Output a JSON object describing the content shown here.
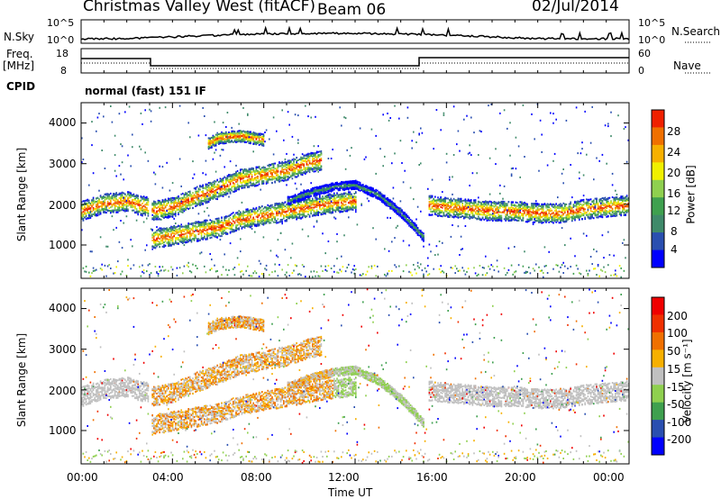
{
  "header": {
    "station": "Christmas Valley West (fitACF)",
    "beam": "Beam 06",
    "date": "02/Jul/2014"
  },
  "noise_panel": {
    "left_label": "N.Sky",
    "right_label": "N.Search",
    "left_ticks": [
      "10^5",
      "10^0"
    ],
    "right_ticks": [
      "10^5",
      "10^0"
    ]
  },
  "freq_panel": {
    "left_label_1": "Freq.",
    "left_label_2": "[MHz]",
    "right_label": "Nave",
    "left_ticks": [
      "18",
      "8"
    ],
    "right_ticks": [
      "60",
      "0"
    ]
  },
  "cpid": {
    "label": "CPID",
    "value": "normal (fast) 151 IF"
  },
  "colors": {
    "power_scale": [
      "#0000ff",
      "#2a4fb0",
      "#3f8a6a",
      "#3fa04f",
      "#8fd04f",
      "#f0f000",
      "#f7b000",
      "#f07000",
      "#f02000"
    ],
    "velocity_scale": [
      "#0000ff",
      "#2a4fb0",
      "#3fa04f",
      "#8fd04f",
      "#c0c0c0",
      "#f7b000",
      "#f07000",
      "#f03000",
      "#f00000"
    ]
  },
  "chart_data": [
    {
      "type": "heatmap",
      "panel": "power",
      "ylabel": "Slant Range [km]",
      "yticks": [
        "4000",
        "3000",
        "2000",
        "1000"
      ],
      "ylim": [
        180,
        4500
      ],
      "colorbar_label": "Power [dB]",
      "colorbar_ticks": [
        "28",
        "24",
        "20",
        "16",
        "12",
        "8",
        "4"
      ],
      "xlim_hours": [
        0,
        24
      ],
      "bands": [
        {
          "name": "main_echo_early",
          "x": [
            0,
            0.5,
            1,
            1.5,
            2,
            2.5,
            2.95
          ],
          "y": [
            1850,
            1950,
            2050,
            2050,
            2100,
            2000,
            1950
          ]
        },
        {
          "name": "main_echo_lower",
          "x": [
            3,
            4,
            5,
            6,
            7,
            8,
            9,
            10,
            11,
            12
          ],
          "y": [
            1150,
            1250,
            1350,
            1450,
            1650,
            1750,
            1850,
            1950,
            2050,
            2100
          ]
        },
        {
          "name": "main_echo_upper",
          "x": [
            3,
            4,
            5,
            6,
            7,
            8,
            9,
            10,
            10.5
          ],
          "y": [
            1850,
            1950,
            2200,
            2400,
            2650,
            2750,
            2850,
            3050,
            3100
          ]
        },
        {
          "name": "patch_high",
          "x": [
            5.5,
            6,
            7,
            8
          ],
          "y": [
            3500,
            3650,
            3700,
            3600
          ]
        },
        {
          "name": "slanted_e",
          "x": [
            9,
            10,
            11,
            12,
            13,
            14,
            15
          ],
          "y": [
            2100,
            2300,
            2450,
            2500,
            2250,
            1800,
            1200
          ]
        },
        {
          "name": "afternoon_band",
          "x": [
            15.2,
            16,
            17,
            18,
            19,
            20,
            21,
            22,
            23,
            24
          ],
          "y": [
            2000,
            1950,
            1900,
            1850,
            1850,
            1800,
            1800,
            1900,
            1950,
            2000
          ]
        }
      ]
    },
    {
      "type": "heatmap",
      "panel": "velocity",
      "ylabel": "Slant Range [km]",
      "yticks": [
        "4000",
        "3000",
        "2000",
        "1000"
      ],
      "ylim": [
        180,
        4500
      ],
      "xlabel": "Time UT",
      "xticks": [
        "00:00",
        "04:00",
        "08:00",
        "12:00",
        "16:00",
        "20:00",
        "00:00"
      ],
      "colorbar_label": "Velocity [m s⁻¹]",
      "colorbar_ticks": [
        "200",
        "100",
        "50",
        "15",
        "-15",
        "-50",
        "-100",
        "-200"
      ],
      "xlim_hours": [
        0,
        24
      ]
    }
  ]
}
